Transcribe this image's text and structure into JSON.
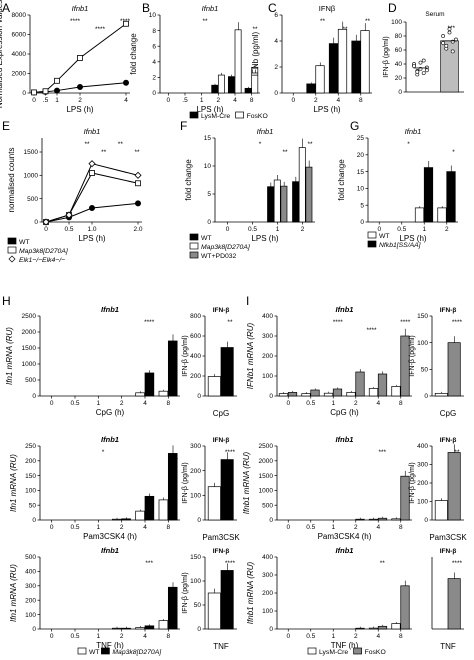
{
  "figure": {
    "panel_letters": [
      "A",
      "B",
      "C",
      "D",
      "E",
      "F",
      "G",
      "H",
      "I"
    ]
  },
  "colors": {
    "black": "#000000",
    "white": "#ffffff",
    "gray": "#8a8a8a",
    "light_gray": "#bdbdbd"
  },
  "chart_data": [
    {
      "panel": "A",
      "type": "line",
      "title": "Ifnb1",
      "xlabel": "LPS (h)",
      "ylabel": "Normalised Expression Values",
      "x": [
        0,
        0.5,
        1,
        2,
        4
      ],
      "x_ticks": [
        "0",
        ".5",
        "1",
        "2",
        "4"
      ],
      "ylim": [
        0,
        8000
      ],
      "y_ticks": [
        "0",
        "2000",
        "4000",
        "6000",
        "8000"
      ],
      "series": [
        {
          "style": "black",
          "values": [
            60,
            120,
            250,
            620,
            1050
          ]
        },
        {
          "style": "white",
          "values": [
            60,
            180,
            1250,
            3600,
            7100
          ]
        }
      ],
      "annotations": [
        "****",
        "****",
        "****"
      ]
    },
    {
      "panel": "B",
      "type": "bar",
      "title": "Ifnb1",
      "xlabel": "LPS (h)",
      "ylabel": "fold change",
      "categories": [
        "0",
        ".5",
        "1",
        "2",
        "4",
        "8"
      ],
      "ylim": [
        0,
        10
      ],
      "y_ticks": [
        "0",
        "2",
        "4",
        "6",
        "8",
        "10"
      ],
      "series": [
        {
          "style": "black",
          "values": [
            0,
            0,
            0,
            1.0,
            2.1,
            0.6
          ]
        },
        {
          "style": "white",
          "values": [
            0,
            0,
            0,
            2.3,
            8.1,
            3.3
          ]
        }
      ],
      "annotations": [
        "**",
        "**"
      ]
    },
    {
      "panel": "C",
      "type": "bar",
      "title": "IFNβ",
      "xlabel": "LPS (h)",
      "ylabel": "IFNb (pg/ml)",
      "categories": [
        "0",
        "2",
        "4",
        "8"
      ],
      "ylim": [
        0,
        6
      ],
      "y_ticks": [
        "0",
        "2",
        "4",
        "6"
      ],
      "series": [
        {
          "style": "black",
          "values": [
            0,
            0.7,
            3.8,
            4.0
          ]
        },
        {
          "style": "white",
          "values": [
            0,
            2.1,
            4.9,
            4.8
          ]
        }
      ],
      "annotations": [
        "**",
        "**",
        "**"
      ]
    },
    {
      "panel": "D",
      "type": "scatter",
      "title": "Serum",
      "ylabel": "IFN-β (pg/ml)",
      "ylim": [
        0,
        100
      ],
      "y_ticks": [
        "0",
        "20",
        "40",
        "60",
        "80",
        "100"
      ],
      "groups": [
        {
          "style": "black",
          "values": [
            38,
            30,
            42,
            27,
            35,
            40,
            25,
            33,
            45,
            31,
            37,
            29
          ]
        },
        {
          "style": "gray",
          "values": [
            70,
            62,
            85,
            58,
            75,
            80,
            66,
            90,
            72
          ]
        }
      ],
      "annotations": [
        "***"
      ]
    },
    {
      "panel": "E",
      "type": "line",
      "title": "Ifnb1",
      "xlabel": "LPS (h)",
      "ylabel": "normalised counts",
      "x": [
        0,
        0.5,
        1,
        2
      ],
      "x_ticks": [
        "0",
        "0.5",
        "1.0",
        "2.0"
      ],
      "ylim": [
        0,
        1800
      ],
      "y_ticks": [
        "0",
        "500",
        "1000",
        "1500"
      ],
      "series": [
        {
          "name": "WT",
          "style": "black",
          "values": [
            0,
            100,
            300,
            400
          ]
        },
        {
          "name": "Map3k8[D270A]",
          "style": "white",
          "values": [
            0,
            150,
            1050,
            830
          ]
        },
        {
          "name": "Elk1−/−Elk4−/−",
          "style": "white-diamond",
          "values": [
            0,
            150,
            1250,
            1000
          ]
        }
      ],
      "annotations": [
        "**",
        "**",
        "**",
        "**"
      ]
    },
    {
      "panel": "F",
      "type": "bar",
      "title": "Ifnb1",
      "xlabel": "LPS (h)",
      "ylabel": "fold change",
      "categories": [
        "0",
        "0.5",
        "1",
        "2"
      ],
      "ylim": [
        0,
        15
      ],
      "y_ticks": [
        "0",
        "5",
        "10",
        "15"
      ],
      "series": [
        {
          "name": "WT",
          "style": "black",
          "values": [
            0,
            0,
            6.3,
            7.2
          ]
        },
        {
          "name": "Map3k8[D270A]",
          "style": "white",
          "values": [
            0,
            0,
            7.5,
            13.3
          ]
        },
        {
          "name": "WT+PD032",
          "style": "gray",
          "values": [
            0,
            0,
            6.4,
            9.8
          ]
        }
      ],
      "annotations": [
        "*",
        "**",
        "**"
      ]
    },
    {
      "panel": "G",
      "type": "bar",
      "title": "Ifnb1",
      "xlabel": "LPS (h)",
      "ylabel": "fold change",
      "categories": [
        "0",
        "0.5",
        "1",
        "2"
      ],
      "ylim": [
        0,
        25
      ],
      "y_ticks": [
        "0",
        "5",
        "10",
        "15",
        "20",
        "25"
      ],
      "series": [
        {
          "name": "WT",
          "style": "white",
          "values": [
            0,
            0,
            4.2,
            4.2
          ]
        },
        {
          "name": "Nfkb1[SS/AA]",
          "style": "black",
          "values": [
            0,
            0,
            16.2,
            15.0
          ]
        }
      ],
      "annotations": [
        "*",
        "*"
      ]
    },
    {
      "panel": "H",
      "type": "bar",
      "title": "Ifnb1",
      "xlabel": "CpG (h)",
      "ylabel": "Ifn1 mRNA (RU)",
      "categories": [
        "0",
        "0.5",
        "1",
        "2",
        "4",
        "8"
      ],
      "ylim": [
        0,
        2500
      ],
      "y_ticks": [
        "0",
        "500",
        "1000",
        "1500",
        "2000",
        "2500"
      ],
      "series": [
        {
          "style": "white",
          "values": [
            0,
            0,
            0,
            0,
            100,
            150
          ]
        },
        {
          "style": "black",
          "values": [
            0,
            0,
            0,
            0,
            720,
            1720
          ]
        }
      ],
      "annotations": [
        "****"
      ]
    },
    {
      "panel": "H",
      "type": "bar",
      "title": "IFN-β",
      "xlabel": "CpG",
      "ylabel": "IFN-β (pg/ml)",
      "categories": [
        ""
      ],
      "ylim": [
        0,
        800
      ],
      "y_ticks": [
        "0",
        "200",
        "400",
        "600",
        "800"
      ],
      "series": [
        {
          "style": "white",
          "values": [
            195
          ]
        },
        {
          "style": "black",
          "values": [
            485
          ]
        }
      ],
      "annotations": [
        "**"
      ]
    },
    {
      "panel": "H",
      "type": "bar",
      "title": "Ifnb1",
      "xlabel": "Pam3CSK4 (h)",
      "ylabel": "Ifn1 mRNA (RU)",
      "categories": [
        "0",
        "0.5",
        "1",
        "2",
        "4",
        "8"
      ],
      "ylim": [
        0,
        250
      ],
      "y_ticks": [
        "0",
        "50",
        "100",
        "150",
        "200",
        "250"
      ],
      "series": [
        {
          "style": "white",
          "values": [
            0,
            0,
            0,
            1,
            30,
            68
          ]
        },
        {
          "style": "black",
          "values": [
            0,
            0,
            0,
            4,
            80,
            225
          ]
        }
      ],
      "annotations": [
        "*",
        "****"
      ]
    },
    {
      "panel": "H",
      "type": "bar",
      "title": "IFN-β",
      "xlabel": "Pam3CSK",
      "ylabel": "IFN-β (pg/ml)",
      "categories": [
        ""
      ],
      "ylim": [
        0,
        300
      ],
      "y_ticks": [
        "0",
        "100",
        "200",
        "300"
      ],
      "series": [
        {
          "style": "white",
          "values": [
            135
          ]
        },
        {
          "style": "black",
          "values": [
            245
          ]
        }
      ],
      "annotations": [
        "****"
      ]
    },
    {
      "panel": "H",
      "type": "bar",
      "title": "Ifnb1",
      "xlabel": "TNF (h)",
      "ylabel": "Ifn1 mRNA (RU)",
      "categories": [
        "0",
        "0.5",
        "1",
        "2",
        "4",
        "8"
      ],
      "ylim": [
        0,
        500
      ],
      "y_ticks": [
        "0",
        "100",
        "200",
        "300",
        "400",
        "500"
      ],
      "series": [
        {
          "style": "white",
          "values": [
            0,
            0,
            0,
            1,
            10,
            58
          ]
        },
        {
          "style": "black",
          "values": [
            0,
            0,
            0,
            3,
            22,
            290
          ]
        }
      ],
      "annotations": [
        "***"
      ]
    },
    {
      "panel": "H",
      "type": "bar",
      "title": "IFN-β",
      "xlabel": "TNF",
      "ylabel": "IFN-β (pg/ml)",
      "categories": [
        ""
      ],
      "ylim": [
        0,
        150
      ],
      "y_ticks": [
        "0",
        "50",
        "100",
        "150"
      ],
      "series": [
        {
          "style": "white",
          "values": [
            75
          ]
        },
        {
          "style": "black",
          "values": [
            122
          ]
        }
      ],
      "annotations": [
        "****"
      ]
    },
    {
      "panel": "I",
      "type": "bar",
      "title": "Ifnb1",
      "xlabel": "CpG (h)",
      "ylabel": "IFNb1 mRNA (RU)",
      "categories": [
        "0",
        "0.5",
        "1",
        "2",
        "4",
        "8"
      ],
      "ylim": [
        0,
        400
      ],
      "y_ticks": [
        "0",
        "100",
        "200",
        "300",
        "400"
      ],
      "series": [
        {
          "style": "white",
          "values": [
            12,
            12,
            14,
            18,
            38,
            48
          ]
        },
        {
          "style": "gray",
          "values": [
            18,
            30,
            35,
            120,
            110,
            300
          ]
        }
      ],
      "annotations": [
        "****",
        "****",
        "****"
      ]
    },
    {
      "panel": "I",
      "type": "bar",
      "title": "IFN-β",
      "xlabel": "CpG",
      "ylabel": "IFN-β (pg/ml)",
      "categories": [
        ""
      ],
      "ylim": [
        0,
        150
      ],
      "y_ticks": [
        "0",
        "50",
        "100",
        "150"
      ],
      "series": [
        {
          "style": "white",
          "values": [
            5
          ]
        },
        {
          "style": "gray",
          "values": [
            100
          ]
        }
      ],
      "annotations": [
        "****"
      ]
    },
    {
      "panel": "I",
      "type": "bar",
      "title": "Ifnb1",
      "xlabel": "Pam3CSK4 (h)",
      "ylabel": "Ifnb1 mRNA (RU)",
      "categories": [
        "0",
        "0.5",
        "1",
        "2",
        "4",
        "8"
      ],
      "ylim": [
        0,
        2500
      ],
      "y_ticks": [
        "0",
        "500",
        "1000",
        "1500",
        "2000",
        "2500"
      ],
      "series": [
        {
          "style": "white",
          "values": [
            0,
            0,
            0,
            0,
            15,
            40
          ]
        },
        {
          "style": "gray",
          "values": [
            0,
            0,
            0,
            5,
            60,
            1480
          ]
        }
      ],
      "annotations": [
        "***"
      ]
    },
    {
      "panel": "I",
      "type": "bar",
      "title": "IFN-β",
      "xlabel": "Pam3CSK",
      "ylabel": "IFN-β (pg/ml)",
      "categories": [
        ""
      ],
      "ylim": [
        0,
        400
      ],
      "y_ticks": [
        "0",
        "100",
        "200",
        "300",
        "400"
      ],
      "series": [
        {
          "style": "white",
          "values": [
            105
          ]
        },
        {
          "style": "gray",
          "values": [
            365
          ]
        }
      ],
      "annotations": [
        "**"
      ]
    },
    {
      "panel": "I",
      "type": "bar",
      "title": "Ifnb1",
      "xlabel": "TNF (h)",
      "ylabel": "Ifnb1 mRNA (RU)",
      "categories": [
        "0",
        "0.5",
        "1",
        "2",
        "4",
        "8"
      ],
      "ylim": [
        0,
        400
      ],
      "y_ticks": [
        "0",
        "100",
        "200",
        "300",
        "400"
      ],
      "series": [
        {
          "style": "white",
          "values": [
            0,
            0,
            0,
            0,
            5,
            30
          ]
        },
        {
          "style": "gray",
          "values": [
            0,
            0,
            0,
            2,
            15,
            240
          ]
        }
      ],
      "annotations": [
        "**"
      ]
    },
    {
      "panel": "I",
      "type": "bar",
      "title": "IFN-β",
      "xlabel": "TNF",
      "ylabel": "",
      "categories": [
        ""
      ],
      "ylim": [
        0,
        400
      ],
      "y_ticks": [],
      "series": [
        {
          "style": "white",
          "values": [
            0
          ]
        },
        {
          "style": "gray",
          "values": [
            280
          ]
        }
      ],
      "annotations": [
        "****"
      ]
    }
  ],
  "legends": [
    {
      "items": [
        {
          "label": "LysM-Cre",
          "style": "black"
        },
        {
          "label": "FosKO",
          "style": "white"
        }
      ]
    },
    {
      "items": [
        {
          "label": "WT",
          "style": "black"
        },
        {
          "label": "Map3k8[D270A]",
          "style": "white"
        },
        {
          "label": "Elk1−/−Elk4−/−",
          "style": "white-diamond"
        }
      ]
    },
    {
      "items": [
        {
          "label": "WT",
          "style": "black"
        },
        {
          "label": "Map3k8[D270A]",
          "style": "white"
        },
        {
          "label": "WT+PD032",
          "style": "gray"
        }
      ]
    },
    {
      "items": [
        {
          "label": "WT",
          "style": "white"
        },
        {
          "label": "Nfkb1[SS/AA]",
          "style": "black"
        }
      ]
    },
    {
      "items": [
        {
          "label": "WT",
          "style": "white"
        },
        {
          "label": "Map3k8[D270A]",
          "style": "black"
        }
      ]
    },
    {
      "items": [
        {
          "label": "LysM-Cre",
          "style": "white"
        },
        {
          "label": "FosKO",
          "style": "gray"
        }
      ]
    }
  ]
}
